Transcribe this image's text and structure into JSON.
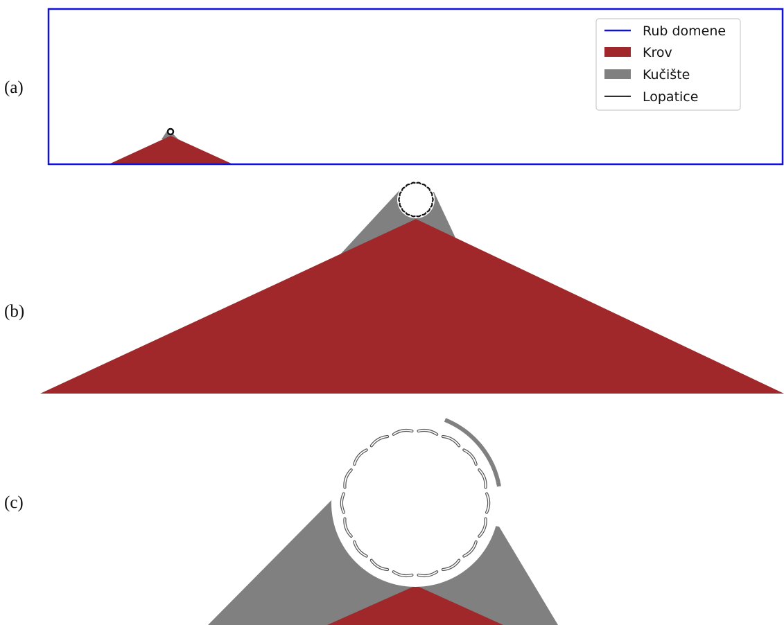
{
  "panels": [
    {
      "label": "(a)"
    },
    {
      "label": "(b)"
    },
    {
      "label": "(c)"
    }
  ],
  "legend": {
    "entries": [
      {
        "label": "Rub domene",
        "swatch": "line",
        "color": "#1010dd"
      },
      {
        "label": "Krov",
        "swatch": "patch",
        "color": "#a0282a"
      },
      {
        "label": "Kučište",
        "swatch": "patch",
        "color": "#808080"
      },
      {
        "label": "Lopatice",
        "swatch": "line",
        "color": "#111111"
      }
    ]
  },
  "colors": {
    "domain_edge": "#1010dd",
    "roof": "#a0282a",
    "housing": "#808080",
    "blades": "#111111"
  },
  "rotor": {
    "blade_count": 18
  }
}
